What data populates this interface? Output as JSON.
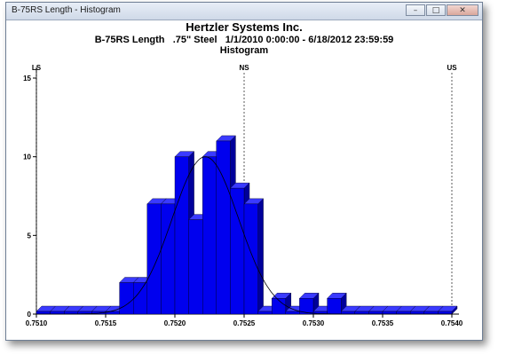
{
  "window": {
    "title": "B-75RS Length - Histogram",
    "minimize_glyph": "–",
    "maximize_glyph": "□",
    "close_glyph": "✕"
  },
  "chart_data": {
    "type": "bar",
    "title": "Hertzler Systems Inc.",
    "subtitle": "B-75RS Length   .75\" Steel   1/1/2010 0:00:00 - 6/18/2012 23:59:59",
    "subtitle2": "Histogram",
    "xlabel": "",
    "ylabel": "",
    "xlim": [
      0.751,
      0.754
    ],
    "ylim": [
      0,
      15
    ],
    "x_ticks": [
      "0.7510",
      "0.7515",
      "0.7520",
      "0.7525",
      "0.7530",
      "0.7535",
      "0.7540"
    ],
    "y_ticks": [
      "0",
      "5",
      "10",
      "15"
    ],
    "bin_width": 0.0001,
    "bins": [
      {
        "start": 0.751,
        "count": 0
      },
      {
        "start": 0.7511,
        "count": 0
      },
      {
        "start": 0.7512,
        "count": 0
      },
      {
        "start": 0.7513,
        "count": 0
      },
      {
        "start": 0.7514,
        "count": 0
      },
      {
        "start": 0.7515,
        "count": 0
      },
      {
        "start": 0.7516,
        "count": 2
      },
      {
        "start": 0.7517,
        "count": 2
      },
      {
        "start": 0.7518,
        "count": 7
      },
      {
        "start": 0.7519,
        "count": 7
      },
      {
        "start": 0.752,
        "count": 10
      },
      {
        "start": 0.7521,
        "count": 6
      },
      {
        "start": 0.7522,
        "count": 10
      },
      {
        "start": 0.7523,
        "count": 11
      },
      {
        "start": 0.7524,
        "count": 8
      },
      {
        "start": 0.7525,
        "count": 7
      },
      {
        "start": 0.7526,
        "count": 0
      },
      {
        "start": 0.7527,
        "count": 1
      },
      {
        "start": 0.7528,
        "count": 0
      },
      {
        "start": 0.7529,
        "count": 1
      },
      {
        "start": 0.753,
        "count": 0
      },
      {
        "start": 0.7531,
        "count": 1
      },
      {
        "start": 0.7532,
        "count": 0
      },
      {
        "start": 0.7533,
        "count": 0
      },
      {
        "start": 0.7534,
        "count": 0
      },
      {
        "start": 0.7535,
        "count": 0
      },
      {
        "start": 0.7536,
        "count": 0
      },
      {
        "start": 0.7537,
        "count": 0
      },
      {
        "start": 0.7538,
        "count": 0
      },
      {
        "start": 0.7539,
        "count": 0
      }
    ],
    "spec_lines": [
      {
        "label": "LS",
        "x": 0.751
      },
      {
        "label": "NS",
        "x": 0.7525
      },
      {
        "label": "US",
        "x": 0.754
      }
    ],
    "normal_curve": {
      "mean": 0.75222,
      "sd": 0.00024,
      "peak": 10
    },
    "grid": false,
    "colors": {
      "bar_front": "#0000ee",
      "bar_top": "#3a3aff",
      "bar_side": "#00009a",
      "curve": "#000000"
    }
  }
}
